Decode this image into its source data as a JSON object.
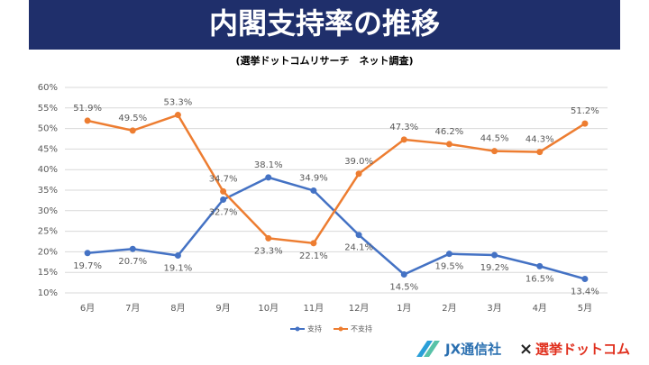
{
  "chart_data": {
    "type": "line",
    "title": "内閣支持率の推移",
    "subtitle": "(選挙ドットコムリサーチ　ネット調査)",
    "categories": [
      "6月",
      "7月",
      "8月",
      "9月",
      "10月",
      "11月",
      "12月",
      "1月",
      "2月",
      "3月",
      "4月",
      "5月"
    ],
    "series": [
      {
        "name": "支持",
        "color": "#4472c4",
        "values": [
          19.7,
          20.7,
          19.1,
          32.7,
          38.1,
          34.9,
          24.1,
          14.5,
          19.5,
          19.2,
          16.5,
          13.4
        ],
        "value_labels": [
          "19.7%",
          "20.7%",
          "19.1%",
          "32.7%",
          "38.1%",
          "34.9%",
          "24.1%",
          "14.5%",
          "19.5%",
          "19.2%",
          "16.5%",
          "13.4%"
        ]
      },
      {
        "name": "不支持",
        "color": "#ed7d31",
        "values": [
          51.9,
          49.5,
          53.3,
          34.7,
          23.3,
          22.1,
          39.0,
          47.3,
          46.2,
          44.5,
          44.3,
          51.2
        ],
        "value_labels": [
          "51.9%",
          "49.5%",
          "53.3%",
          "34.7%",
          "23.3%",
          "22.1%",
          "39.0%",
          "47.3%",
          "46.2%",
          "44.5%",
          "44.3%",
          "51.2%"
        ]
      }
    ],
    "ylim": [
      10,
      60
    ],
    "yticks": [
      {
        "value": 10,
        "label": "10%"
      },
      {
        "value": 15,
        "label": "15%"
      },
      {
        "value": 20,
        "label": "20%"
      },
      {
        "value": 25,
        "label": "25%"
      },
      {
        "value": 30,
        "label": "30%"
      },
      {
        "value": 35,
        "label": "35%"
      },
      {
        "value": 40,
        "label": "40%"
      },
      {
        "value": 45,
        "label": "45%"
      },
      {
        "value": 50,
        "label": "50%"
      },
      {
        "value": 55,
        "label": "55%"
      },
      {
        "value": 60,
        "label": "60%"
      }
    ],
    "grid": true,
    "legend": "bottom"
  },
  "footer": {
    "logo_left": "JX通信社",
    "separator": "×",
    "logo_right": "選挙ドットコム"
  }
}
